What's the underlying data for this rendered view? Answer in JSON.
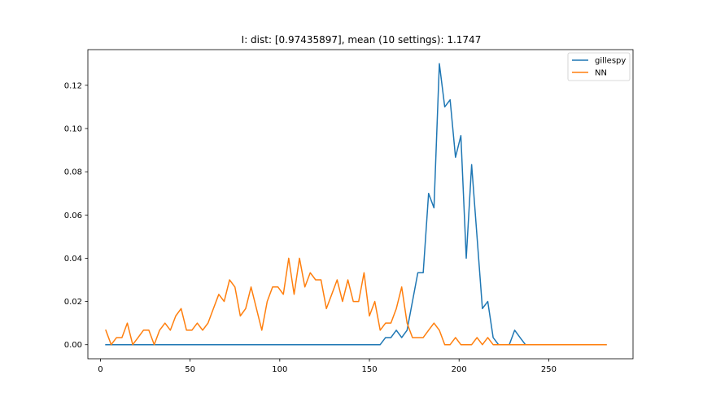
{
  "chart_data": {
    "type": "line",
    "title": "I: dist: [0.97435897], mean (10 settings): 1.1747",
    "xlabel": "",
    "ylabel": "",
    "xlim": [
      -7,
      297
    ],
    "ylim": [
      -0.0065,
      0.1365
    ],
    "xticks": [
      0,
      50,
      100,
      150,
      200,
      250
    ],
    "yticks": [
      0.0,
      0.02,
      0.04,
      0.06,
      0.08,
      0.1,
      0.12
    ],
    "ytick_labels": [
      "0.00",
      "0.02",
      "0.04",
      "0.06",
      "0.08",
      "0.10",
      "0.12"
    ],
    "legend_position": "top-right",
    "x": [
      3,
      6,
      9,
      12,
      15,
      18,
      21,
      24,
      27,
      30,
      33,
      36,
      39,
      42,
      45,
      48,
      51,
      54,
      57,
      60,
      63,
      66,
      69,
      72,
      75,
      78,
      81,
      84,
      87,
      90,
      93,
      96,
      99,
      102,
      105,
      108,
      111,
      114,
      117,
      120,
      123,
      126,
      129,
      132,
      135,
      138,
      141,
      144,
      147,
      150,
      153,
      156,
      159,
      162,
      165,
      168,
      171,
      174,
      177,
      180,
      183,
      186,
      189,
      192,
      195,
      198,
      201,
      204,
      207,
      210,
      213,
      216,
      219,
      222,
      225,
      228,
      231,
      234,
      237,
      240,
      243,
      246,
      249,
      252,
      255,
      258,
      261,
      264,
      267,
      270,
      273,
      276,
      279,
      282
    ],
    "series": [
      {
        "name": "gillespy",
        "color": "#1f77b4",
        "values": [
          0,
          0,
          0,
          0,
          0,
          0,
          0,
          0,
          0,
          0,
          0,
          0,
          0,
          0,
          0,
          0,
          0,
          0,
          0,
          0,
          0,
          0,
          0,
          0,
          0,
          0,
          0,
          0,
          0,
          0,
          0,
          0,
          0,
          0,
          0,
          0,
          0,
          0,
          0,
          0,
          0,
          0,
          0,
          0,
          0,
          0,
          0,
          0,
          0,
          0,
          0,
          0,
          0.0033,
          0.0033,
          0.0067,
          0.0033,
          0.0067,
          0.02,
          0.0333,
          0.0333,
          0.07,
          0.0633,
          0.13,
          0.11,
          0.1133,
          0.0867,
          0.0967,
          0.04,
          0.0833,
          0.05,
          0.0167,
          0.02,
          0.0033,
          0,
          0,
          0,
          0.0067,
          0.0033,
          0,
          0,
          0,
          0,
          0,
          0,
          0,
          0,
          0,
          0,
          0,
          0,
          0,
          0,
          0,
          0
        ]
      },
      {
        "name": "NN",
        "color": "#ff7f0e",
        "values": [
          0.0067,
          0,
          0.0033,
          0.0033,
          0.01,
          0,
          0.0033,
          0.0067,
          0.0067,
          0,
          0.0067,
          0.01,
          0.0067,
          0.0133,
          0.0167,
          0.0067,
          0.0067,
          0.01,
          0.0067,
          0.01,
          0.0167,
          0.0233,
          0.02,
          0.03,
          0.0267,
          0.0133,
          0.0167,
          0.0267,
          0.0167,
          0.0067,
          0.02,
          0.0267,
          0.0267,
          0.0233,
          0.04,
          0.0233,
          0.04,
          0.0267,
          0.0333,
          0.03,
          0.03,
          0.0167,
          0.0233,
          0.03,
          0.02,
          0.03,
          0.02,
          0.02,
          0.0333,
          0.0133,
          0.02,
          0.0067,
          0.01,
          0.01,
          0.0167,
          0.0267,
          0.01,
          0.0033,
          0.0033,
          0.0033,
          0.0067,
          0.01,
          0.0067,
          0,
          0,
          0.0033,
          0,
          0,
          0,
          0.0033,
          0,
          0.0033,
          0,
          0,
          0,
          0,
          0,
          0,
          0,
          0,
          0,
          0,
          0,
          0,
          0,
          0,
          0,
          0,
          0,
          0,
          0,
          0,
          0,
          0
        ]
      }
    ]
  }
}
